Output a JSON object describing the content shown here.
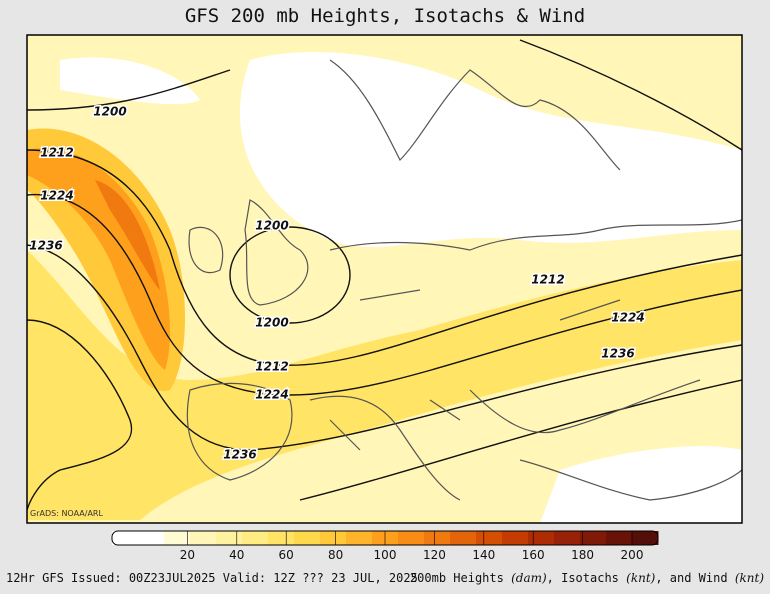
{
  "header": {
    "title": "GFS 200 mb Heights, Isotachs & Wind"
  },
  "map": {
    "credit": "GrADS: NOAA/ARL",
    "contour_labels": [
      "1200",
      "1212",
      "1224",
      "1236",
      "1200",
      "1200",
      "1212",
      "1224",
      "1236",
      "1212",
      "1224",
      "1236"
    ]
  },
  "colorbar": {
    "ticks": [
      20,
      40,
      60,
      80,
      100,
      120,
      140,
      160,
      180,
      200
    ],
    "colors": [
      "#ffffff",
      "#ffffff",
      "#fffbd2",
      "#fff6b8",
      "#fff29e",
      "#ffec82",
      "#ffe466",
      "#ffd94c",
      "#ffc93a",
      "#ffb52a",
      "#ffa01c",
      "#f88c14",
      "#f07a10",
      "#e4640a",
      "#d44e04",
      "#c43c02",
      "#ae2c04",
      "#982208",
      "#801a08",
      "#681208",
      "#541008"
    ]
  },
  "footer": {
    "left": "12Hr GFS Issued: 00Z23JUL2025 Valid: 12Z ??? 23 JUL, 2025",
    "right": [
      "200mb Heights ",
      "(dam)",
      ", Isotachs ",
      "(knt)",
      ", and Wind ",
      "(knt)"
    ]
  }
}
